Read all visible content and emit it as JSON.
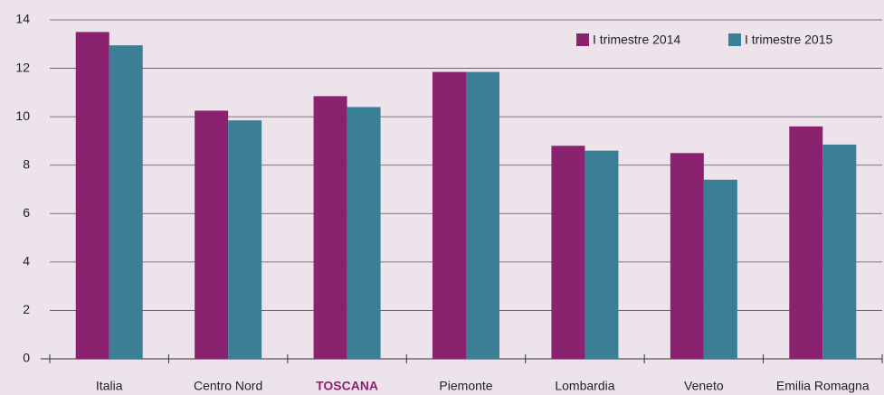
{
  "chart_data": {
    "type": "bar",
    "categories": [
      "Italia",
      "Centro Nord",
      "TOSCANA",
      "Piemonte",
      "Lombardia",
      "Veneto",
      "Emilia Romagna"
    ],
    "highlighted_category": "TOSCANA",
    "highlight_color": "#8b2270",
    "series": [
      {
        "name": "I trimestre 2014",
        "color": "#8b2270",
        "values": [
          13.5,
          10.25,
          10.85,
          11.85,
          8.8,
          8.5,
          9.6
        ]
      },
      {
        "name": "I trimestre 2015",
        "color": "#3a7f95",
        "values": [
          12.95,
          9.85,
          10.4,
          11.85,
          8.6,
          7.4,
          8.85
        ]
      }
    ],
    "ylim": [
      0,
      14
    ],
    "yticks": [
      0,
      2,
      4,
      6,
      8,
      10,
      12,
      14
    ],
    "grid": true,
    "legend": "upper right"
  }
}
